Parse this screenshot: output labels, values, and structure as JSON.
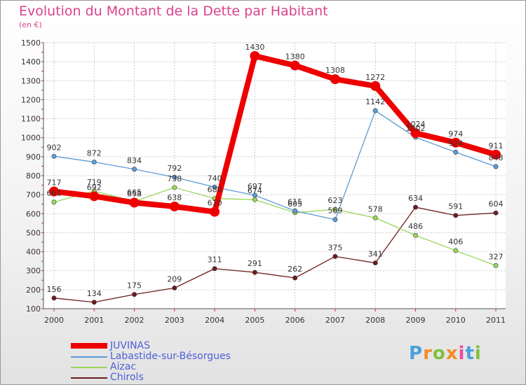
{
  "title": "Evolution du Montant de la Dette par Habitant",
  "unit": "(en €)",
  "logo": {
    "text": "Proxiti",
    "letters": [
      "P",
      "r",
      "o",
      "x",
      "i",
      "t",
      "i"
    ],
    "colors": [
      "#4aa0dc",
      "#f28c28",
      "#7fbf3f",
      "#f28c28",
      "#e94e9c",
      "#4aa0dc",
      "#7fbf3f"
    ]
  },
  "chart_data": {
    "type": "line",
    "x": [
      "2000",
      "2001",
      "2002",
      "2003",
      "2004",
      "2005",
      "2006",
      "2007",
      "2008",
      "2009",
      "2010",
      "2011"
    ],
    "ylim": [
      100,
      1500
    ],
    "yticks": [
      100,
      200,
      300,
      400,
      500,
      600,
      700,
      800,
      900,
      1000,
      1100,
      1200,
      1300,
      1400,
      1500
    ],
    "grid": true,
    "legend_position": "bottom-left",
    "series": [
      {
        "name": "JUVINAS",
        "color": "#ee0000",
        "values": [
          717,
          692,
          658,
          638,
          610,
          1430,
          1380,
          1308,
          1272,
          1024,
          974,
          911
        ],
        "labels": [
          "717",
          "692",
          "658",
          "638",
          "610",
          "1430",
          "1380",
          "1308",
          "1272",
          "1024",
          "974",
          "911"
        ]
      },
      {
        "name": "Labastide-sur-Bésorgues",
        "color": "#5b9bd5",
        "values": [
          902,
          872,
          834,
          792,
          740,
          697,
          615,
          569,
          1142,
          1002,
          924,
          848
        ],
        "labels": [
          "902",
          "872",
          "834",
          "792",
          "740",
          "697",
          "615",
          "569",
          "1142",
          "1002",
          "924",
          "848"
        ]
      },
      {
        "name": "Aizac",
        "color": "#99d65a",
        "values": [
          661,
          719,
          665,
          738,
          680,
          674,
          605,
          623,
          578,
          486,
          406,
          327
        ],
        "labels": [
          "661",
          "719",
          "665",
          "738",
          "680",
          "674",
          "605",
          "623",
          "578",
          "486",
          "406",
          "327"
        ]
      },
      {
        "name": "Chirols",
        "color": "#6b1d1d",
        "values": [
          156,
          134,
          175,
          209,
          311,
          291,
          262,
          375,
          341,
          634,
          591,
          604
        ],
        "labels": [
          "156",
          "134",
          "175",
          "209",
          "311",
          "291",
          "262",
          "375",
          "341",
          "634",
          "591",
          "604"
        ]
      }
    ]
  }
}
